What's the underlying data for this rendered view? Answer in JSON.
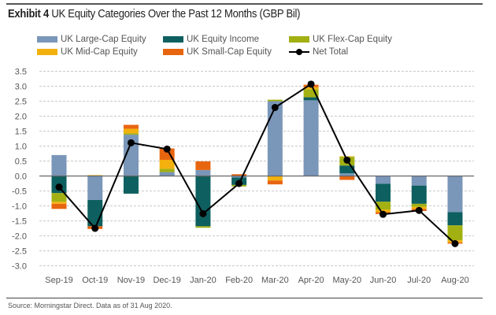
{
  "header": {
    "exhibit_label": "Exhibit 4",
    "title_text": "UK Equity Categories Over the Past 12 Months (GBP Bil)"
  },
  "footer": {
    "source": "Source: Morningstar Direct. Data as of 31 Aug 2020."
  },
  "chart_data": {
    "type": "bar",
    "stacked": true,
    "title": "Exhibit 4 UK Equity Categories Over the Past 12 Months (GBP Bil)",
    "xlabel": "",
    "ylabel": "",
    "ylim": [
      -3.0,
      3.5
    ],
    "yticks": [
      3.5,
      3.0,
      2.5,
      2.0,
      1.5,
      1.0,
      0.5,
      0.0,
      -0.5,
      -1.0,
      -1.5,
      -2.0,
      -2.5,
      -3.0
    ],
    "ytick_labels": [
      "3.5",
      "3.0",
      "2.5",
      "2.0",
      "1.5",
      "1.0",
      "0.5",
      "0.0",
      "-0.5",
      "-1.0",
      "-1.5",
      "-2.0",
      "-2.5",
      "-3.0"
    ],
    "grid": true,
    "legend_position": "top",
    "categories": [
      "Sep-19",
      "Oct-19",
      "Nov-19",
      "Dec-19",
      "Jan-20",
      "Feb-20",
      "Mar-20",
      "Apr-20",
      "May-20",
      "Jun-20",
      "Jul-20",
      "Aug-20"
    ],
    "series": [
      {
        "name": "UK Large-Cap Equity",
        "color": "#7a96b9",
        "values": [
          0.7,
          -0.8,
          1.38,
          0.13,
          0.2,
          -0.05,
          2.5,
          2.53,
          0.09,
          -0.26,
          -0.32,
          -1.21
        ]
      },
      {
        "name": "UK Equity Income",
        "color": "#0e5f5f",
        "values": [
          -0.57,
          -0.88,
          -0.59,
          0.0,
          -1.68,
          -0.25,
          0.0,
          0.1,
          0.26,
          -0.6,
          -0.61,
          -0.44
        ]
      },
      {
        "name": "UK Flex-Cap Equity",
        "color": "#a2b012",
        "values": [
          -0.29,
          0.0,
          0.05,
          0.11,
          -0.05,
          -0.05,
          0.05,
          0.27,
          0.29,
          -0.26,
          -0.1,
          -0.5
        ]
      },
      {
        "name": "UK Mid-Cap Equity",
        "color": "#f2b10e",
        "values": [
          -0.07,
          0.03,
          0.15,
          0.3,
          0.0,
          0.0,
          -0.15,
          0.07,
          0.02,
          -0.09,
          -0.07,
          -0.07
        ]
      },
      {
        "name": "UK Small-Cap Equity",
        "color": "#e8650f",
        "values": [
          -0.17,
          -0.09,
          0.13,
          0.38,
          0.29,
          0.06,
          -0.13,
          0.08,
          -0.13,
          -0.06,
          -0.07,
          -0.04
        ]
      }
    ],
    "line_series": {
      "name": "Net Total",
      "color": "#000000",
      "values": [
        -0.37,
        -1.75,
        1.11,
        0.9,
        -1.26,
        -0.25,
        2.29,
        3.07,
        0.53,
        -1.28,
        -1.15,
        -2.26
      ]
    }
  }
}
